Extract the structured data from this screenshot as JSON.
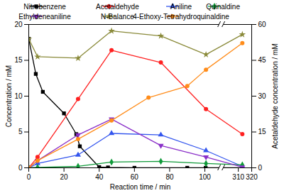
{
  "chart_data": {
    "type": "line",
    "x_label": "Reaction time / min",
    "y_label": "Concentration / mM",
    "y2_label": "Acetaldehyde concentration / mM",
    "xlim": [
      0,
      320
    ],
    "xticks": [
      0,
      20,
      40,
      60,
      80,
      100,
      310,
      320
    ],
    "ylim": [
      0,
      20
    ],
    "yticks": [
      0,
      5,
      10,
      15,
      20
    ],
    "y2lim": [
      0,
      60
    ],
    "y2ticks": [
      0,
      15,
      30,
      45,
      60
    ],
    "grid": false,
    "legend": "top",
    "series": [
      {
        "name": "Nitrobenzene",
        "color": "#000000",
        "marker": "square",
        "line_style": "solid",
        "x": [
          0,
          4,
          8,
          20,
          27,
          29,
          40,
          45,
          60,
          90,
          105,
          313
        ],
        "values": [
          18,
          13.1,
          10.6,
          7.6,
          4.7,
          3.0,
          0.1,
          0.05,
          0,
          0,
          0,
          0
        ]
      },
      {
        "name": "Acetaldehyde",
        "color": "#ff2020",
        "marker": "circle",
        "line_style": "solid",
        "axis": "y2",
        "x": [
          0,
          5,
          28,
          47,
          75,
          107,
          313
        ],
        "values": [
          0,
          4.5,
          28.8,
          49.2,
          44.1,
          24.6,
          14.1
        ]
      },
      {
        "name": "Aniline",
        "color": "#3355ee",
        "marker": "triangle",
        "line_style": "solid",
        "x": [
          0,
          5,
          28,
          47,
          75,
          107,
          313
        ],
        "values": [
          0,
          0.6,
          1.8,
          4.8,
          4.6,
          2.4,
          0.2
        ]
      },
      {
        "name": "Quinaldine",
        "color": "#109a3a",
        "marker": "diamond",
        "line_style": "solid",
        "x": [
          0,
          5,
          28,
          47,
          75,
          107,
          313
        ],
        "values": [
          0,
          0.05,
          0.2,
          0.8,
          0.9,
          0.6,
          0.4
        ]
      },
      {
        "name": "Ethyldeneaniline",
        "color": "#8a2fc8",
        "marker": "triangle-down",
        "line_style": "solid",
        "x": [
          0,
          5,
          28,
          47,
          75,
          107,
          313
        ],
        "values": [
          0,
          1.0,
          4.6,
          6.8,
          3.1,
          1.5,
          0.1
        ]
      },
      {
        "name": "N-Balance",
        "color": "#8a8a3a",
        "marker": "star",
        "line_style": "solid",
        "x": [
          0,
          5,
          28,
          47,
          75,
          107,
          313
        ],
        "values": [
          18,
          15.5,
          15.3,
          19.1,
          18.4,
          15.8,
          18.6
        ]
      },
      {
        "name": "4-Ethoxy-Tetrahydroquinaldine",
        "color": "#ff8c1a",
        "marker": "circle",
        "line_style": "solid",
        "x": [
          0,
          5,
          28,
          47,
          68,
          90,
          107,
          313
        ],
        "values": [
          0,
          1.0,
          4.0,
          6.6,
          9.8,
          11.4,
          13.7,
          17.4
        ]
      }
    ]
  }
}
